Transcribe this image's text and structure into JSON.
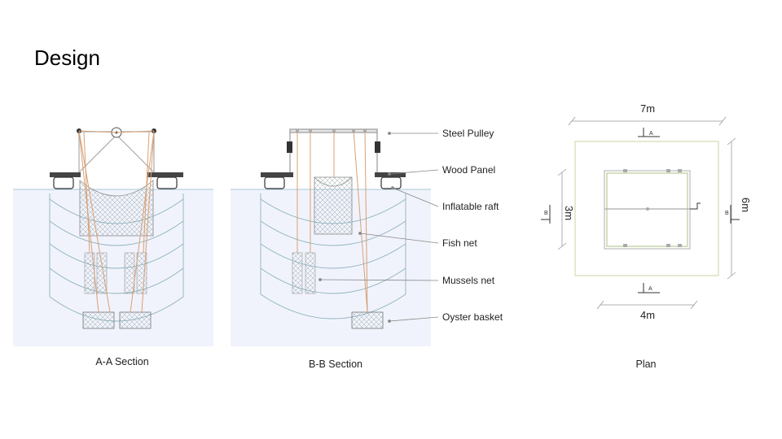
{
  "slide": {
    "title": "Design"
  },
  "captions": {
    "section_aa": "A-A Section",
    "section_bb": "B-B Section",
    "plan": "Plan"
  },
  "callouts": {
    "steel_pulley": "Steel Pulley",
    "wood_panel": "Wood Panel",
    "inflatable_raft": "Inflatable raft",
    "fish_net": "Fish net",
    "mussels_net": "Mussels net",
    "oyster_basket": "Oyster basket"
  },
  "plan": {
    "dim_top": "7m",
    "dim_bottom": "4m",
    "dim_left": "3m",
    "dim_right": "6m",
    "marker_a": "A",
    "marker_b": "B"
  }
}
